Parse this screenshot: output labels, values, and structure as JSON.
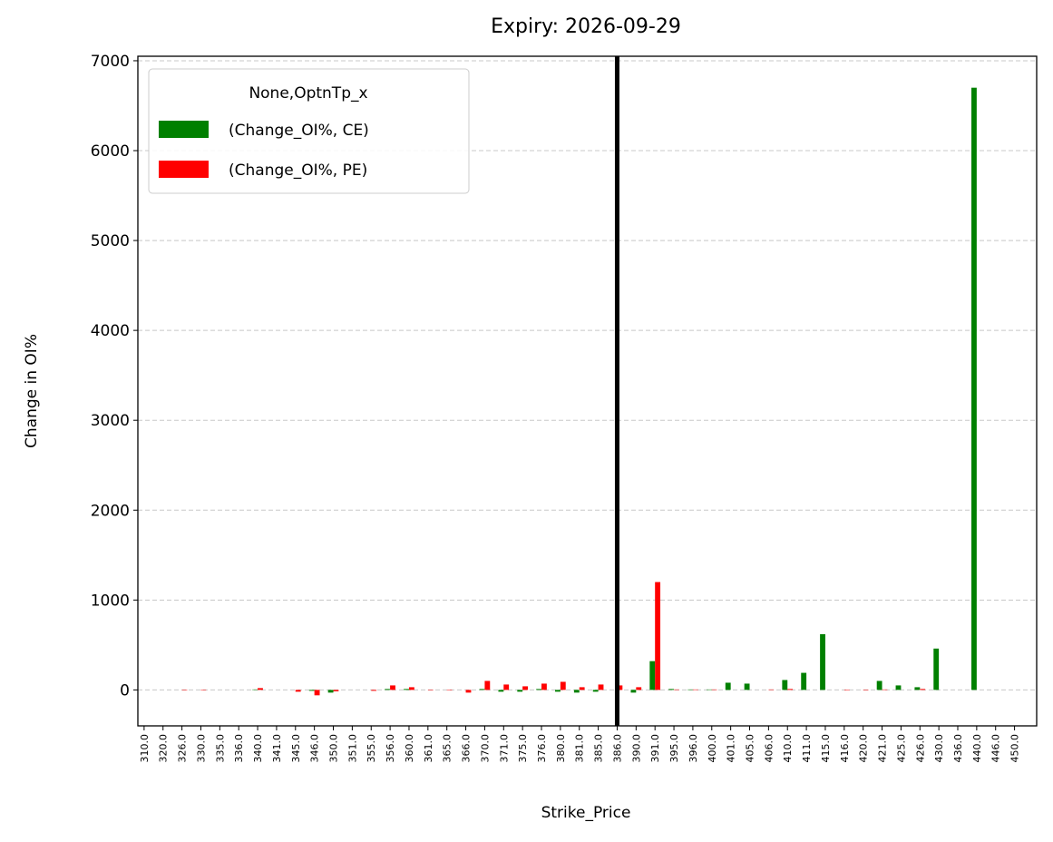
{
  "chart_data": {
    "type": "bar",
    "title": "Expiry: 2026-09-29",
    "xlabel": "Strike_Price",
    "ylabel": "Change in OI%",
    "legend_title": "None,OptnTp_x",
    "legend": "upper left",
    "grid": true,
    "categories": [
      "310.0",
      "320.0",
      "326.0",
      "330.0",
      "335.0",
      "336.0",
      "340.0",
      "341.0",
      "345.0",
      "346.0",
      "350.0",
      "351.0",
      "355.0",
      "356.0",
      "360.0",
      "361.0",
      "365.0",
      "366.0",
      "370.0",
      "371.0",
      "375.0",
      "376.0",
      "380.0",
      "381.0",
      "385.0",
      "386.0",
      "390.0",
      "391.0",
      "395.0",
      "396.0",
      "400.0",
      "401.0",
      "405.0",
      "406.0",
      "410.0",
      "411.0",
      "415.0",
      "416.0",
      "420.0",
      "421.0",
      "425.0",
      "426.0",
      "430.0",
      "436.0",
      "440.0",
      "446.0",
      "450.0"
    ],
    "series": [
      {
        "name": "(Change_OI%, CE)",
        "color": "#008000",
        "values": [
          0,
          0,
          0,
          0,
          0,
          0,
          5,
          0,
          0,
          -10,
          -30,
          0,
          0,
          10,
          10,
          0,
          0,
          0,
          10,
          -20,
          -20,
          10,
          -20,
          -30,
          -20,
          0,
          -30,
          320,
          10,
          5,
          5,
          80,
          70,
          0,
          110,
          190,
          620,
          0,
          0,
          100,
          50,
          30,
          460,
          0,
          6700,
          0,
          0
        ]
      },
      {
        "name": "(Change_OI%, PE)",
        "color": "#ff0000",
        "values": [
          0,
          0,
          -5,
          -5,
          0,
          0,
          20,
          0,
          -20,
          -60,
          -15,
          0,
          -10,
          50,
          30,
          -5,
          -5,
          -30,
          100,
          60,
          40,
          70,
          90,
          30,
          60,
          50,
          30,
          1200,
          5,
          5,
          5,
          0,
          0,
          5,
          10,
          0,
          0,
          -5,
          -5,
          5,
          0,
          10,
          0,
          0,
          0,
          0,
          0
        ]
      }
    ],
    "vline": "386.0",
    "vline_color": "#000000",
    "ylim": [
      -400,
      7050
    ],
    "yticks": [
      0,
      1000,
      2000,
      3000,
      4000,
      5000,
      6000,
      7000
    ]
  }
}
